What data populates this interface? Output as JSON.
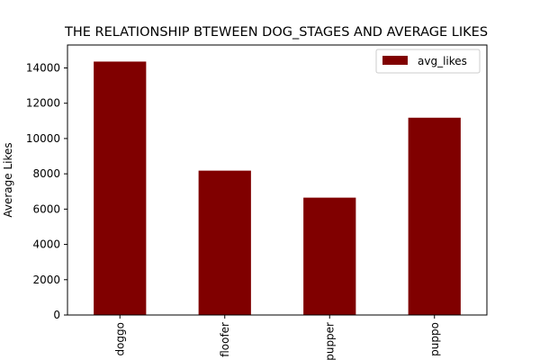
{
  "chart_data": {
    "type": "bar",
    "title": "THE RELATIONSHIP BTEWEEN DOG_STAGES AND AVERAGE LIKES",
    "xlabel": "",
    "ylabel": "Average Likes",
    "categories": [
      "doggo",
      "floofer",
      "pupper",
      "puppo"
    ],
    "series": [
      {
        "name": "avg_likes",
        "values": [
          14360,
          8180,
          6650,
          11180
        ]
      }
    ],
    "ylim": [
      0,
      15300
    ],
    "yticks": [
      0,
      2000,
      4000,
      6000,
      8000,
      10000,
      12000,
      14000
    ],
    "grid": false,
    "legend": "top-right",
    "colors": {
      "bar": "#800000",
      "axis": "#000000",
      "background": "#ffffff"
    }
  }
}
